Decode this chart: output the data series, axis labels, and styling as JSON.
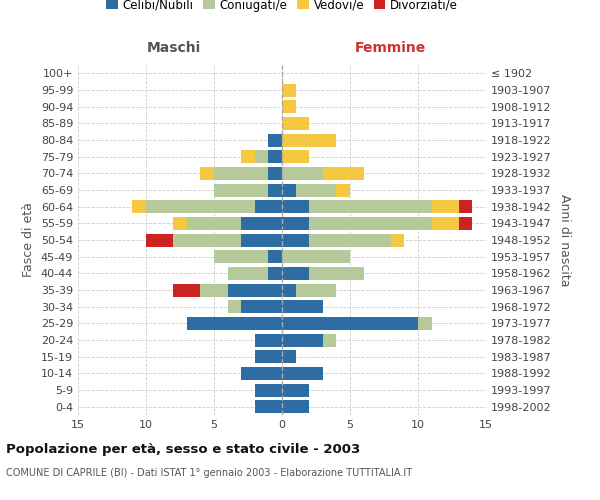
{
  "age_groups": [
    "0-4",
    "5-9",
    "10-14",
    "15-19",
    "20-24",
    "25-29",
    "30-34",
    "35-39",
    "40-44",
    "45-49",
    "50-54",
    "55-59",
    "60-64",
    "65-69",
    "70-74",
    "75-79",
    "80-84",
    "85-89",
    "90-94",
    "95-99",
    "100+"
  ],
  "birth_years": [
    "1998-2002",
    "1993-1997",
    "1988-1992",
    "1983-1987",
    "1978-1982",
    "1973-1977",
    "1968-1972",
    "1963-1967",
    "1958-1962",
    "1953-1957",
    "1948-1952",
    "1943-1947",
    "1938-1942",
    "1933-1937",
    "1928-1932",
    "1923-1927",
    "1918-1922",
    "1913-1917",
    "1908-1912",
    "1903-1907",
    "≤ 1902"
  ],
  "maschi": {
    "celibi": [
      2,
      2,
      3,
      2,
      2,
      7,
      3,
      4,
      1,
      1,
      3,
      3,
      2,
      1,
      1,
      1,
      1,
      0,
      0,
      0,
      0
    ],
    "coniugati": [
      0,
      0,
      0,
      0,
      0,
      0,
      1,
      2,
      3,
      4,
      5,
      4,
      8,
      4,
      4,
      1,
      0,
      0,
      0,
      0,
      0
    ],
    "vedovi": [
      0,
      0,
      0,
      0,
      0,
      0,
      0,
      0,
      0,
      0,
      0,
      1,
      1,
      0,
      1,
      1,
      0,
      0,
      0,
      0,
      0
    ],
    "divorziati": [
      0,
      0,
      0,
      0,
      0,
      0,
      0,
      2,
      0,
      0,
      2,
      0,
      0,
      0,
      0,
      0,
      0,
      0,
      0,
      0,
      0
    ]
  },
  "femmine": {
    "nubili": [
      2,
      2,
      3,
      1,
      3,
      10,
      3,
      1,
      2,
      0,
      2,
      2,
      2,
      1,
      0,
      0,
      0,
      0,
      0,
      0,
      0
    ],
    "coniugate": [
      0,
      0,
      0,
      0,
      1,
      1,
      0,
      3,
      4,
      5,
      6,
      9,
      9,
      3,
      3,
      0,
      0,
      0,
      0,
      0,
      0
    ],
    "vedove": [
      0,
      0,
      0,
      0,
      0,
      0,
      0,
      0,
      0,
      0,
      1,
      2,
      2,
      1,
      3,
      2,
      4,
      2,
      1,
      1,
      0
    ],
    "divorziate": [
      0,
      0,
      0,
      0,
      0,
      0,
      0,
      0,
      0,
      0,
      0,
      1,
      1,
      0,
      0,
      0,
      0,
      0,
      0,
      0,
      0
    ]
  },
  "colors": {
    "celibi_nubili": "#2e6da4",
    "coniugati": "#b5c99a",
    "vedovi": "#f5c842",
    "divorziati": "#cc2222"
  },
  "title": "Popolazione per età, sesso e stato civile - 2003",
  "subtitle": "COMUNE DI CAPRILE (BI) - Dati ISTAT 1° gennaio 2003 - Elaborazione TUTTITALIA.IT",
  "ylabel_left": "Fasce di età",
  "ylabel_right": "Anni di nascita",
  "xlabel_maschi": "Maschi",
  "xlabel_femmine": "Femmine",
  "xlim": 15,
  "background_color": "#ffffff",
  "grid_color": "#cccccc",
  "legend_labels": [
    "Celibi/Nubili",
    "Coniugati/e",
    "Vedovi/e",
    "Divorziati/e"
  ]
}
